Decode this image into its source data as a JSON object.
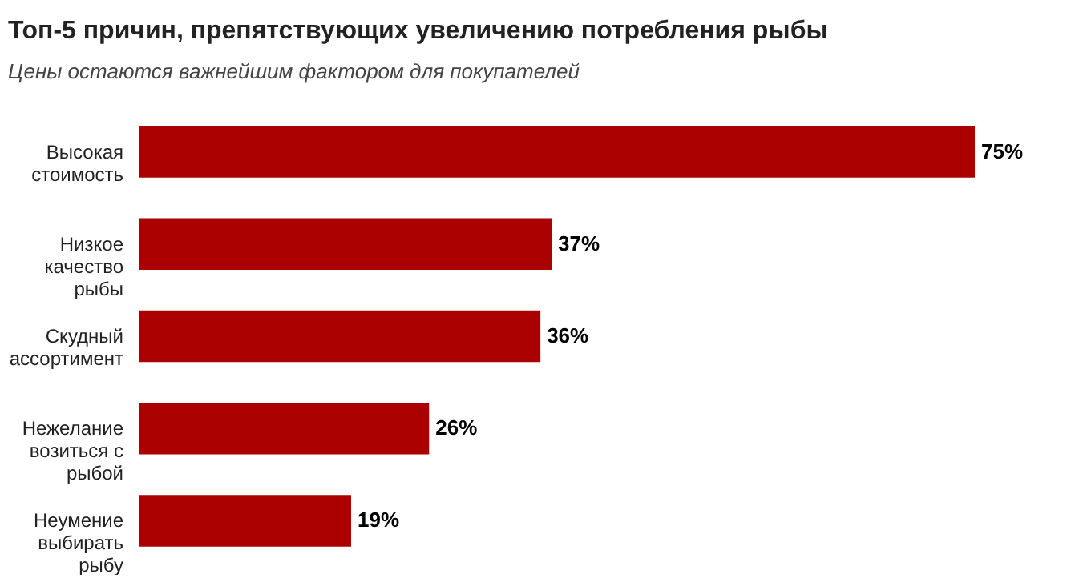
{
  "chart_data": {
    "type": "bar",
    "orientation": "horizontal",
    "title": "Топ-5 причин, препятствующих увеличению потребления рыбы",
    "subtitle": "Цены остаются важнейшим фактором для покупателей",
    "categories": [
      "Высокая стоимость",
      "Низкое качество рыбы",
      "Скудный ассортимент",
      "Нежелание возиться с рыбой",
      "Неумение выбирать рыбу"
    ],
    "values": [
      75,
      37,
      36,
      26,
      19
    ],
    "value_labels": [
      "75%",
      "37%",
      "36%",
      "26%",
      "19%"
    ],
    "color": "#aa0000"
  }
}
